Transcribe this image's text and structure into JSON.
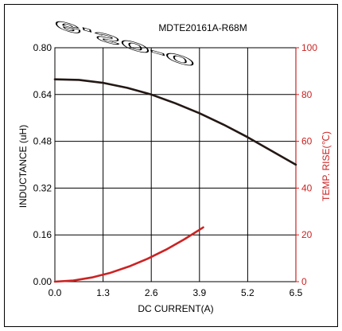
{
  "chart_data": {
    "type": "line",
    "title": "MDTE20161A-R68M",
    "xlabel": "DC CURRENT(A)",
    "ylabel_left": "INDUCTANCE (uH)",
    "ylabel_right": "TEMP. RISE(℃)",
    "xlim": [
      0,
      6.5
    ],
    "ylim_left": [
      0,
      0.8
    ],
    "ylim_right": [
      0,
      100
    ],
    "grid": true,
    "x_ticks": [
      {
        "value": 0,
        "label": "0.0"
      },
      {
        "value": 1.3,
        "label": "1.3"
      },
      {
        "value": 2.6,
        "label": "2.6"
      },
      {
        "value": 3.9,
        "label": "3.9"
      },
      {
        "value": 5.2,
        "label": "5.2"
      },
      {
        "value": 6.5,
        "label": "6.5"
      }
    ],
    "y_left_ticks": [
      {
        "value": 0,
        "label": "0.00"
      },
      {
        "value": 0.16,
        "label": "0.16"
      },
      {
        "value": 0.32,
        "label": "0.32"
      },
      {
        "value": 0.48,
        "label": "0.48"
      },
      {
        "value": 0.64,
        "label": "0.64"
      },
      {
        "value": 0.8,
        "label": "0.80"
      }
    ],
    "y_right_ticks": [
      {
        "value": 0,
        "label": "0"
      },
      {
        "value": 20,
        "label": "20"
      },
      {
        "value": 40,
        "label": "40"
      },
      {
        "value": 60,
        "label": "60"
      },
      {
        "value": 80,
        "label": "80"
      },
      {
        "value": 100,
        "label": "100"
      }
    ],
    "series": [
      {
        "axis": "left",
        "color": "#231815",
        "x": [
          0,
          0.65,
          1.3,
          1.95,
          2.6,
          3.25,
          3.9,
          4.55,
          5.2,
          5.85,
          6.5
        ],
        "values": [
          0.692,
          0.69,
          0.68,
          0.663,
          0.64,
          0.61,
          0.576,
          0.537,
          0.494,
          0.447,
          0.4
        ]
      },
      {
        "axis": "right",
        "color": "#cc2222",
        "x": [
          0,
          0.5,
          1.0,
          1.5,
          2.0,
          2.5,
          3.0,
          3.5,
          4.0
        ],
        "values": [
          0,
          0.5,
          1.8,
          3.8,
          6.5,
          9.8,
          13.7,
          18.2,
          23.2
        ]
      }
    ],
    "watermark_text": "e.so-o",
    "colors": {
      "left_axis": "#000000",
      "right_axis": "#cc2222",
      "grid": "#000000"
    }
  }
}
